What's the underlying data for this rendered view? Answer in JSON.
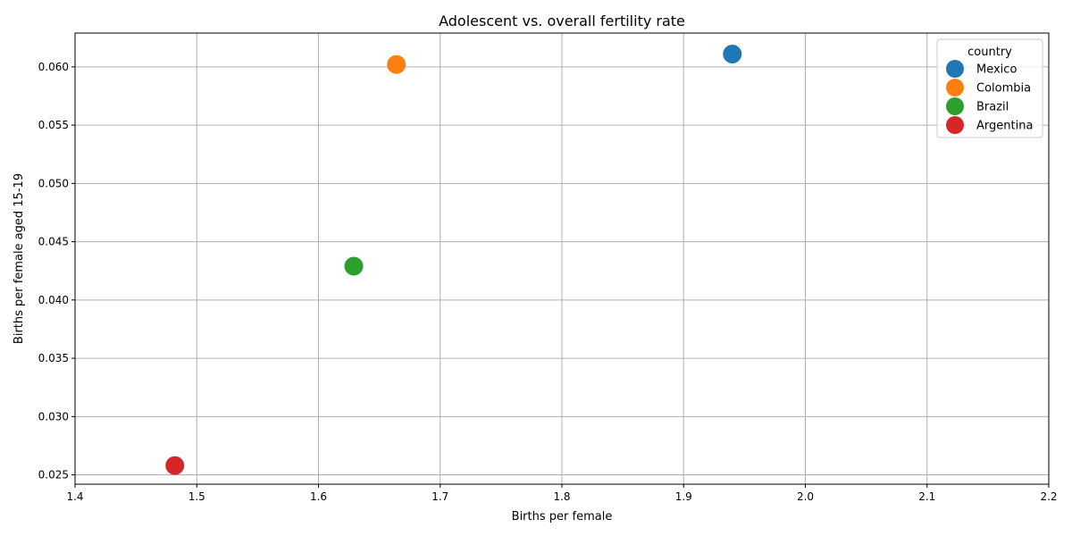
{
  "chart_data": {
    "type": "scatter",
    "title": "Adolescent vs. overall fertility rate",
    "xlabel": "Births per female",
    "ylabel": "Births per female aged 15-19",
    "xlim": [
      1.4,
      2.2
    ],
    "ylim": [
      0.0242,
      0.0629
    ],
    "xticks": [
      1.4,
      1.5,
      1.6,
      1.7,
      1.8,
      1.9,
      2.0,
      2.1,
      2.2
    ],
    "xtick_labels": [
      "1.4",
      "1.5",
      "1.6",
      "1.7",
      "1.8",
      "1.9",
      "2.0",
      "2.1",
      "2.2"
    ],
    "yticks": [
      0.025,
      0.03,
      0.035,
      0.04,
      0.045,
      0.05,
      0.055,
      0.06
    ],
    "ytick_labels": [
      "0.025",
      "0.030",
      "0.035",
      "0.040",
      "0.045",
      "0.050",
      "0.055",
      "0.060"
    ],
    "grid": true,
    "legend": {
      "title": "country",
      "placement": "top-right"
    },
    "series": [
      {
        "name": "Mexico",
        "color": "#1f77b4",
        "x": [
          1.94
        ],
        "y": [
          0.0611
        ]
      },
      {
        "name": "Colombia",
        "color": "#ff7f0e",
        "x": [
          1.664
        ],
        "y": [
          0.0602
        ]
      },
      {
        "name": "Brazil",
        "color": "#2ca02c",
        "x": [
          1.629
        ],
        "y": [
          0.0429
        ]
      },
      {
        "name": "Argentina",
        "color": "#d62728",
        "x": [
          1.482
        ],
        "y": [
          0.0258
        ]
      }
    ]
  }
}
